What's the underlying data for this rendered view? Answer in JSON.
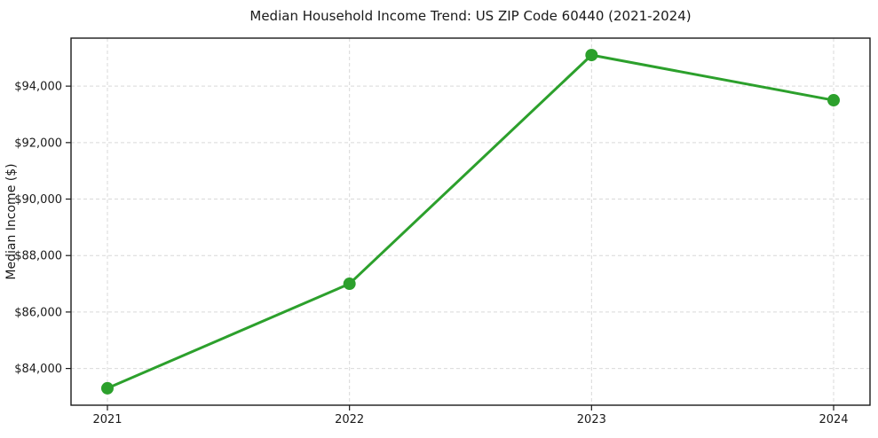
{
  "chart_data": {
    "type": "line",
    "title": "Median Household Income Trend: US ZIP Code 60440 (2021-2024)",
    "xlabel": "",
    "ylabel": "Median Income ($)",
    "x": [
      2021,
      2022,
      2023,
      2024
    ],
    "xtick_labels": [
      "2021",
      "2022",
      "2023",
      "2024"
    ],
    "series": [
      {
        "name": "Median Household Income",
        "values": [
          83300,
          87000,
          95100,
          93500
        ]
      }
    ],
    "ylim": [
      82700,
      95700
    ],
    "yticks": [
      84000,
      86000,
      88000,
      90000,
      92000,
      94000
    ],
    "ytick_labels": [
      "$84,000",
      "$86,000",
      "$88,000",
      "$90,000",
      "$92,000",
      "$94,000"
    ],
    "grid": true,
    "grid_style": "dashed",
    "legend_position": "none",
    "marker": "circle"
  },
  "colors": {
    "line": "#2ca02c",
    "marker": "#2ca02c",
    "grid": "#d9d9d9",
    "spine": "#1a1a1a",
    "tick_text": "#1a1a1a",
    "background": "#ffffff"
  }
}
